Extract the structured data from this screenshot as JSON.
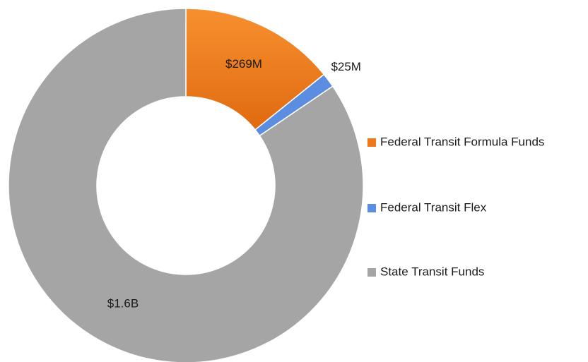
{
  "chart_data": {
    "type": "donut",
    "categories": [
      "Federal Transit Formula Funds",
      "Federal Transit Flex",
      "State Transit Funds"
    ],
    "values": [
      269000000,
      25000000,
      1600000000
    ],
    "value_labels": [
      "$269M",
      "$25M",
      "$1.6B"
    ],
    "colors": [
      "#ec7a1c",
      "#5b8ee0",
      "#a5a5a5"
    ],
    "legend": "right"
  }
}
